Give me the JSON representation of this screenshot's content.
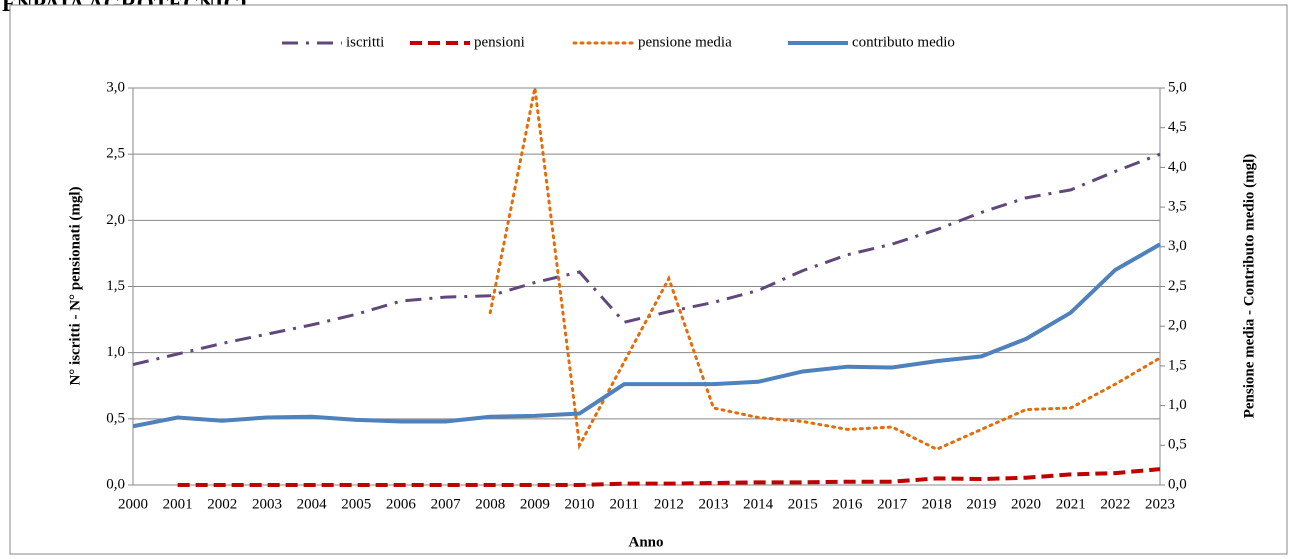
{
  "chart_data": {
    "type": "line",
    "title": "ENPAIA AGROTECNICI",
    "x_label": "Anno",
    "y_label": "N° iscritti - N° pensionati (mgl)",
    "y2_label": "Pensione media - Contributo medio (mgl)",
    "categories": [
      "2000",
      "2001",
      "2002",
      "2003",
      "2004",
      "2005",
      "2006",
      "2007",
      "2008",
      "2009",
      "2010",
      "2011",
      "2012",
      "2013",
      "2014",
      "2015",
      "2016",
      "2017",
      "2018",
      "2019",
      "2020",
      "2021",
      "2022",
      "2023"
    ],
    "series": [
      {
        "name": "iscritti",
        "color": "#60497a",
        "dash": "dashdot",
        "values": [
          0.91,
          0.99,
          1.07,
          1.14,
          1.21,
          1.29,
          1.39,
          1.42,
          1.43,
          1.53,
          1.61,
          1.23,
          1.31,
          1.38,
          1.47,
          1.62,
          1.74,
          1.82,
          1.93,
          2.06,
          2.17,
          2.23,
          2.37,
          2.5
        ]
      },
      {
        "name": "pensioni",
        "color": "#c00000",
        "dash": "dashed",
        "values": [
          null,
          0,
          0,
          0,
          0,
          0,
          0,
          0,
          0,
          0,
          0,
          0.01,
          0.01,
          0.015,
          0.02,
          0.02,
          0.025,
          0.025,
          0.05,
          0.045,
          0.055,
          0.08,
          0.09,
          0.12
        ]
      },
      {
        "name": "pensione media",
        "color": "#e46c0a",
        "dash": "dotted",
        "axis": "y2",
        "values": [
          null,
          null,
          null,
          null,
          null,
          null,
          null,
          null,
          2.17,
          5.0,
          0.5,
          1.55,
          2.6,
          0.97,
          0.85,
          0.8,
          0.7,
          0.73,
          0.45,
          0.7,
          0.95,
          0.97,
          1.27,
          1.6
        ]
      },
      {
        "name": "contributo medio",
        "color": "#4f81bd",
        "dash": "solid",
        "axis": "y2",
        "values": [
          0.74,
          0.85,
          0.81,
          0.85,
          0.86,
          0.82,
          0.8,
          0.8,
          0.86,
          0.87,
          0.9,
          1.27,
          1.27,
          1.27,
          1.3,
          1.43,
          1.49,
          1.48,
          1.56,
          1.62,
          1.84,
          2.17,
          2.71,
          3.03
        ]
      }
    ],
    "ylim": [
      0,
      3
    ],
    "yticks": [
      {
        "value": 0,
        "label": "0,0"
      },
      {
        "value": 0.5,
        "label": "0,5"
      },
      {
        "value": 1,
        "label": "1,0"
      },
      {
        "value": 1.5,
        "label": "1,5"
      },
      {
        "value": 2,
        "label": "2,0"
      },
      {
        "value": 2.5,
        "label": "2,5"
      },
      {
        "value": 3,
        "label": "3,0"
      }
    ],
    "y2lim": [
      0,
      5
    ],
    "y2ticks": [
      {
        "value": 0,
        "label": "0,0"
      },
      {
        "value": 0.5,
        "label": "0,5"
      },
      {
        "value": 1,
        "label": "1,0"
      },
      {
        "value": 1.5,
        "label": "1,5"
      },
      {
        "value": 2,
        "label": "2,0"
      },
      {
        "value": 2.5,
        "label": "2,5"
      },
      {
        "value": 3,
        "label": "3,0"
      },
      {
        "value": 3.5,
        "label": "3,5"
      },
      {
        "value": 4,
        "label": "4,0"
      },
      {
        "value": 4.5,
        "label": "4,5"
      },
      {
        "value": 5,
        "label": "5,0"
      }
    ],
    "grid": true
  }
}
